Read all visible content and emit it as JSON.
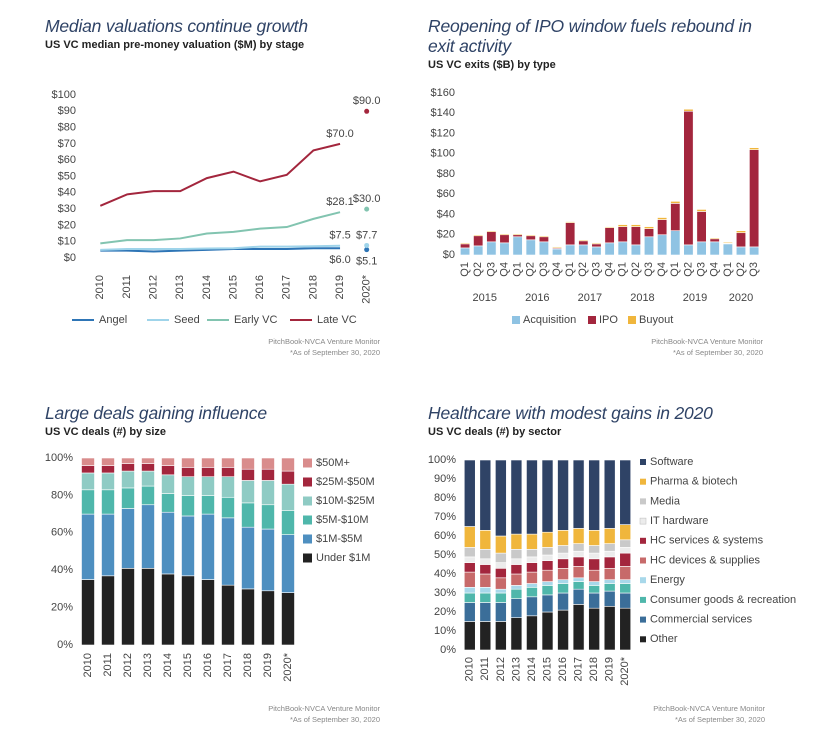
{
  "chart_data": [
    {
      "type": "line",
      "title": "Median valuations continue growth",
      "subtitle": "US VC median pre-money valuation ($M) by stage",
      "categories": [
        "2010",
        "2011",
        "2012",
        "2013",
        "2014",
        "2015",
        "2016",
        "2017",
        "2018",
        "2019",
        "2020*"
      ],
      "projected_last": true,
      "series": [
        {
          "name": "Angel",
          "color": "#2e75b6",
          "values": [
            4.5,
            4.5,
            4,
            4.5,
            5,
            5.5,
            5.5,
            5.5,
            6,
            6,
            5.1
          ],
          "value_labels": [
            null,
            null,
            null,
            null,
            null,
            null,
            null,
            null,
            null,
            "$6.0",
            "$5.1"
          ]
        },
        {
          "name": "Seed",
          "color": "#9fd4ea",
          "values": [
            5,
            5.5,
            5.5,
            5.5,
            5.8,
            6,
            7,
            7,
            7.2,
            7.5,
            7.7
          ],
          "value_labels": [
            null,
            null,
            null,
            null,
            null,
            null,
            null,
            null,
            null,
            "$7.5",
            "$7.7"
          ]
        },
        {
          "name": "Early VC",
          "color": "#82c4b0",
          "values": [
            9,
            11,
            11,
            12,
            15,
            16,
            18,
            19,
            24,
            28.1,
            30
          ],
          "value_labels": [
            null,
            null,
            null,
            null,
            null,
            null,
            null,
            null,
            null,
            "$28.1",
            "$30.0"
          ]
        },
        {
          "name": "Late VC",
          "color": "#a3263d",
          "values": [
            32,
            39,
            41,
            41,
            49,
            53,
            47,
            51,
            66,
            70,
            90
          ],
          "value_labels": [
            null,
            null,
            null,
            null,
            null,
            null,
            null,
            null,
            null,
            "$70.0",
            "$90.0"
          ]
        }
      ],
      "ylim": [
        0,
        100
      ],
      "yticks": [
        {
          "value": 0,
          "label": "$0"
        },
        {
          "value": 10,
          "label": "$10"
        },
        {
          "value": 20,
          "label": "$20"
        },
        {
          "value": 30,
          "label": "$30"
        },
        {
          "value": 40,
          "label": "$40"
        },
        {
          "value": 50,
          "label": "$50"
        },
        {
          "value": 60,
          "label": "$60"
        },
        {
          "value": 70,
          "label": "$70"
        },
        {
          "value": 80,
          "label": "$80"
        },
        {
          "value": 90,
          "label": "$90"
        },
        {
          "value": 100,
          "label": "$100"
        }
      ],
      "source": "PitchBook-NVCA Venture Monitor",
      "note": "*As of September 30, 2020"
    },
    {
      "type": "stacked_bar",
      "title": "Reopening of IPO window fuels rebound in exit activity",
      "subtitle": "US VC exits ($B) by type",
      "categories": [
        "Q1",
        "Q2",
        "Q3",
        "Q4",
        "Q1",
        "Q2",
        "Q3",
        "Q4",
        "Q1",
        "Q2",
        "Q3",
        "Q4",
        "Q1",
        "Q2",
        "Q3",
        "Q4",
        "Q1",
        "Q2",
        "Q3",
        "Q4",
        "Q1",
        "Q2",
        "Q3"
      ],
      "groups": [
        "2015",
        "2016",
        "2017",
        "2018",
        "2019",
        "2020"
      ],
      "series": [
        {
          "name": "Acquisition",
          "color": "#8fc3e3",
          "values": [
            7,
            9,
            13,
            12,
            18,
            15,
            13,
            6,
            10,
            10,
            8,
            12,
            13,
            10,
            18,
            20,
            24,
            10,
            13,
            13,
            11,
            8,
            8
          ]
        },
        {
          "name": "IPO",
          "color": "#a3263d",
          "values": [
            4,
            10,
            10,
            8,
            2,
            4,
            5,
            1,
            22,
            4,
            3,
            15,
            15,
            18,
            8,
            15,
            27,
            132,
            30,
            3,
            0.5,
            14,
            96
          ]
        },
        {
          "name": "Buyout",
          "color": "#f0b63c",
          "values": [
            1,
            1,
            1,
            1,
            1,
            1,
            1,
            1,
            1,
            1,
            1,
            1,
            2,
            2,
            2,
            2,
            2,
            2,
            2,
            1,
            1,
            2,
            2
          ]
        }
      ],
      "ylim": [
        0,
        160
      ],
      "yticks": [
        {
          "value": 0,
          "label": "$0"
        },
        {
          "value": 20,
          "label": "$20"
        },
        {
          "value": 40,
          "label": "$40"
        },
        {
          "value": 60,
          "label": "$60"
        },
        {
          "value": 80,
          "label": "$80"
        },
        {
          "value": 100,
          "label": "$100"
        },
        {
          "value": 120,
          "label": "$120"
        },
        {
          "value": 140,
          "label": "$140"
        },
        {
          "value": 160,
          "label": "$160"
        }
      ],
      "source": "PitchBook-NVCA Venture Monitor",
      "note": "*As of September 30, 2020"
    },
    {
      "type": "stacked_bar",
      "title": "Large deals gaining influence",
      "subtitle": "US VC deals (#) by size",
      "categories": [
        "2010",
        "2011",
        "2012",
        "2013",
        "2014",
        "2015",
        "2016",
        "2017",
        "2018",
        "2019",
        "2020*"
      ],
      "series": [
        {
          "name": "Under $1M",
          "color": "#222222",
          "values": [
            35,
            37,
            41,
            41,
            38,
            37,
            35,
            32,
            30,
            29,
            28
          ]
        },
        {
          "name": "$1M-$5M",
          "color": "#4e8fc0",
          "values": [
            35,
            33,
            32,
            34,
            33,
            32,
            35,
            36,
            33,
            33,
            31
          ]
        },
        {
          "name": "$5M-$10M",
          "color": "#4fb7ab",
          "values": [
            13,
            13,
            11,
            10,
            10,
            11,
            10,
            11,
            13,
            13,
            13
          ]
        },
        {
          "name": "$10M-$25M",
          "color": "#8fcbc4",
          "values": [
            9,
            9,
            9,
            8,
            10,
            10,
            10,
            11,
            12,
            13,
            14
          ]
        },
        {
          "name": "$25M-$50M",
          "color": "#a3263d",
          "values": [
            4,
            4,
            4,
            4,
            5,
            5,
            5,
            5,
            6,
            6,
            7
          ]
        },
        {
          "name": "$50M+",
          "color": "#d98c8c",
          "values": [
            4,
            4,
            3,
            3,
            4,
            5,
            5,
            5,
            6,
            6,
            7
          ]
        }
      ],
      "ylim": [
        0,
        100
      ],
      "yticks": [
        {
          "value": 0,
          "label": "0%"
        },
        {
          "value": 20,
          "label": "20%"
        },
        {
          "value": 40,
          "label": "40%"
        },
        {
          "value": 60,
          "label": "60%"
        },
        {
          "value": 80,
          "label": "80%"
        },
        {
          "value": 100,
          "label": "100%"
        }
      ],
      "source": "PitchBook-NVCA Venture Monitor",
      "note": "*As of September 30, 2020"
    },
    {
      "type": "stacked_bar",
      "title": "Healthcare with modest gains in 2020",
      "subtitle": "US VC deals (#) by sector",
      "categories": [
        "2010",
        "2011",
        "2012",
        "2013",
        "2014",
        "2015",
        "2016",
        "2017",
        "2018",
        "2019",
        "2020*"
      ],
      "series": [
        {
          "name": "Other",
          "color": "#222222",
          "values": [
            15,
            15,
            15,
            17,
            18,
            20,
            21,
            24,
            22,
            23,
            22
          ]
        },
        {
          "name": "Commercial services",
          "color": "#3b6e99",
          "values": [
            10,
            10,
            10,
            10,
            10,
            9,
            9,
            8,
            8,
            8,
            8
          ]
        },
        {
          "name": "Consumer goods & recreation",
          "color": "#4fb7ab",
          "values": [
            5,
            5,
            5,
            5,
            5,
            5,
            5,
            4,
            4,
            4,
            5
          ]
        },
        {
          "name": "Energy",
          "color": "#a8d8ea",
          "values": [
            3,
            3,
            2,
            2,
            2,
            2,
            2,
            2,
            2,
            2,
            2
          ]
        },
        {
          "name": "HC devices & supplies",
          "color": "#c76a6a",
          "values": [
            8,
            7,
            6,
            6,
            6,
            6,
            6,
            6,
            6,
            6,
            7
          ]
        },
        {
          "name": "HC services & systems",
          "color": "#a3263d",
          "values": [
            5,
            5,
            5,
            5,
            5,
            5,
            5,
            5,
            6,
            6,
            7
          ]
        },
        {
          "name": "IT hardware",
          "color": "#ececec",
          "values": [
            3,
            3,
            3,
            3,
            3,
            3,
            3,
            3,
            3,
            3,
            3
          ]
        },
        {
          "name": "Media",
          "color": "#c9c9c9",
          "values": [
            5,
            5,
            5,
            5,
            4,
            4,
            4,
            4,
            4,
            4,
            4
          ]
        },
        {
          "name": "Pharma & biotech",
          "color": "#f0b63c",
          "values": [
            11,
            10,
            9,
            8,
            8,
            8,
            8,
            8,
            8,
            8,
            8
          ]
        },
        {
          "name": "Software",
          "color": "#2f4366",
          "values": [
            35,
            37,
            40,
            39,
            39,
            38,
            37,
            36,
            37,
            36,
            34
          ]
        }
      ],
      "ylim": [
        0,
        100
      ],
      "yticks": [
        {
          "value": 0,
          "label": "0%"
        },
        {
          "value": 10,
          "label": "10%"
        },
        {
          "value": 20,
          "label": "20%"
        },
        {
          "value": 30,
          "label": "30%"
        },
        {
          "value": 40,
          "label": "40%"
        },
        {
          "value": 50,
          "label": "50%"
        },
        {
          "value": 60,
          "label": "60%"
        },
        {
          "value": 70,
          "label": "70%"
        },
        {
          "value": 80,
          "label": "80%"
        },
        {
          "value": 90,
          "label": "90%"
        },
        {
          "value": 100,
          "label": "100%"
        }
      ],
      "source": "PitchBook-NVCA Venture Monitor",
      "note": "*As of September 30, 2020"
    }
  ]
}
